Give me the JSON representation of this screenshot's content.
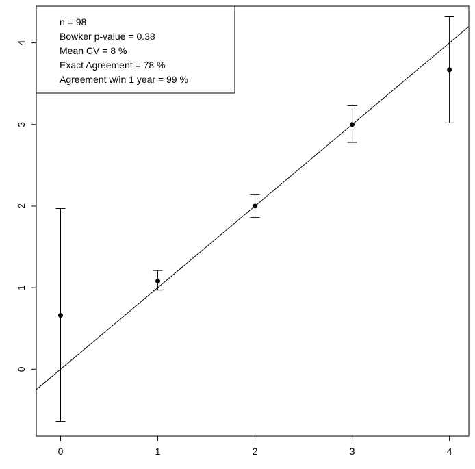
{
  "chart_data": {
    "type": "scatter",
    "title": "",
    "xlabel": "",
    "ylabel": "",
    "xlim": [
      -0.25,
      4.2
    ],
    "ylim": [
      -0.82,
      4.45
    ],
    "x_ticks": [
      0,
      1,
      2,
      3,
      4
    ],
    "y_ticks": [
      0,
      1,
      2,
      3,
      4
    ],
    "x_tick_labels": [
      "0",
      "1",
      "2",
      "3",
      "4"
    ],
    "y_tick_labels": [
      "0",
      "1",
      "2",
      "3",
      "4"
    ],
    "grid": false,
    "legend_position": "top-left",
    "legend_lines": [
      "n =  98",
      "Bowker p-value =  0.38",
      "Mean CV =  8 %",
      "Exact Agreement =  78 %",
      "Agreement w/in 1 year =  99 %"
    ],
    "points": [
      {
        "x": 0,
        "y": 0.66,
        "low": -0.64,
        "high": 1.97
      },
      {
        "x": 1,
        "y": 1.08,
        "low": 0.97,
        "high": 1.21
      },
      {
        "x": 2,
        "y": 2.0,
        "low": 1.86,
        "high": 2.14
      },
      {
        "x": 3,
        "y": 3.0,
        "low": 2.78,
        "high": 3.23
      },
      {
        "x": 4,
        "y": 3.67,
        "low": 3.02,
        "high": 4.32
      }
    ],
    "reference_line": {
      "intercept": 0,
      "slope": 1
    }
  }
}
